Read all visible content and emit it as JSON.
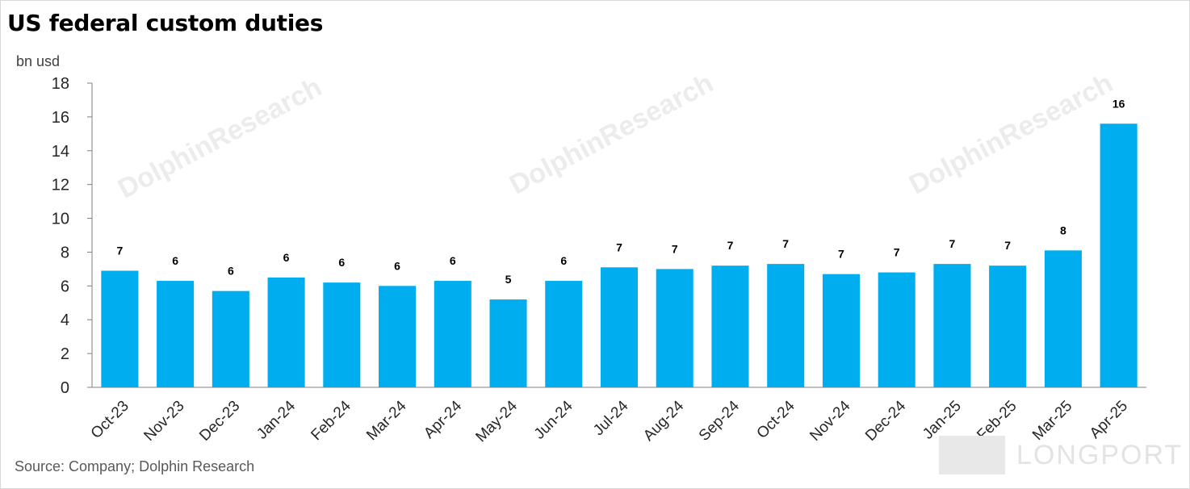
{
  "chart_data": {
    "type": "bar",
    "title": "US federal custom duties",
    "ylabel": "bn usd",
    "xlabel": "",
    "ylim": [
      0,
      18
    ],
    "yticks": [
      0,
      2,
      4,
      6,
      8,
      10,
      12,
      14,
      16,
      18
    ],
    "categories": [
      "Oct-23",
      "Nov-23",
      "Dec-23",
      "Jan-24",
      "Feb-24",
      "Mar-24",
      "Apr-24",
      "May-24",
      "Jun-24",
      "Jul-24",
      "Aug-24",
      "Sep-24",
      "Oct-24",
      "Nov-24",
      "Dec-24",
      "Jan-25",
      "Feb-25",
      "Mar-25",
      "Apr-25"
    ],
    "values": [
      6.9,
      6.3,
      5.7,
      6.5,
      6.2,
      6.0,
      6.3,
      5.2,
      6.3,
      7.1,
      7.0,
      7.2,
      7.3,
      6.7,
      6.8,
      7.3,
      7.2,
      8.1,
      15.6
    ],
    "data_labels": [
      "7",
      "6",
      "6",
      "6",
      "6",
      "6",
      "6",
      "5",
      "6",
      "7",
      "7",
      "7",
      "7",
      "7",
      "7",
      "7",
      "7",
      "8",
      "16"
    ],
    "bar_color": "#00aeef",
    "grid": false,
    "legend": "none"
  },
  "source": "Source: Company; Dolphin Research",
  "watermark": "DolphinResearch",
  "logo_text": "LONGPORT"
}
